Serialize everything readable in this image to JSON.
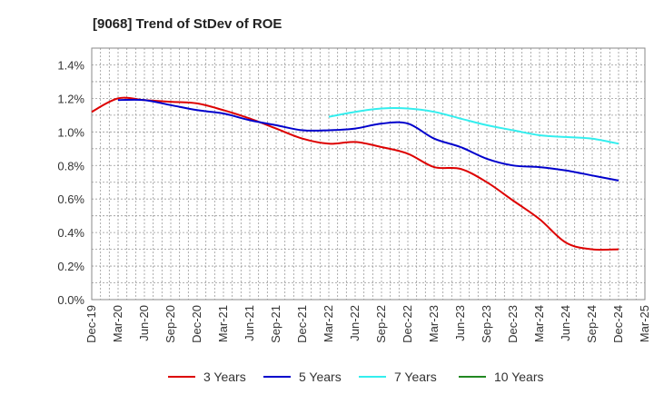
{
  "chart_data": {
    "type": "line",
    "title": "[9068]  Trend of StDev of ROE",
    "xlabel": "",
    "ylabel": "",
    "x_tick_labels": [
      "Dec-19",
      "Mar-20",
      "Jun-20",
      "Sep-20",
      "Dec-20",
      "Mar-21",
      "Jun-21",
      "Sep-21",
      "Dec-21",
      "Mar-22",
      "Jun-22",
      "Sep-22",
      "Dec-22",
      "Mar-23",
      "Jun-23",
      "Sep-23",
      "Dec-23",
      "Mar-24",
      "Jun-24",
      "Sep-24",
      "Dec-24",
      "Mar-25"
    ],
    "y_tick_labels": [
      "0.0%",
      "0.2%",
      "0.4%",
      "0.6%",
      "0.8%",
      "1.0%",
      "1.2%",
      "1.4%"
    ],
    "ylim": [
      0,
      1.5
    ],
    "y_unit": "%",
    "grid": true,
    "legend_position": "bottom",
    "series": [
      {
        "name": "3 Years",
        "color": "#dd0000",
        "values": [
          1.12,
          1.2,
          1.19,
          1.18,
          1.17,
          1.13,
          1.08,
          1.02,
          0.96,
          0.93,
          0.94,
          0.91,
          0.87,
          0.79,
          0.78,
          0.7,
          0.59,
          0.48,
          0.34,
          0.3,
          0.3,
          null
        ]
      },
      {
        "name": "5 Years",
        "color": "#0000cc",
        "values": [
          null,
          1.19,
          1.19,
          1.16,
          1.13,
          1.11,
          1.07,
          1.04,
          1.01,
          1.01,
          1.02,
          1.05,
          1.05,
          0.96,
          0.91,
          0.84,
          0.8,
          0.79,
          0.77,
          0.74,
          0.71,
          null
        ]
      },
      {
        "name": "7 Years",
        "color": "#33eeee",
        "values": [
          null,
          null,
          null,
          null,
          null,
          null,
          null,
          null,
          null,
          1.09,
          1.12,
          1.14,
          1.14,
          1.12,
          1.08,
          1.04,
          1.01,
          0.98,
          0.97,
          0.96,
          0.93,
          null
        ]
      },
      {
        "name": "10 Years",
        "color": "#228822",
        "values": [
          null,
          null,
          null,
          null,
          null,
          null,
          null,
          null,
          null,
          null,
          null,
          null,
          null,
          null,
          null,
          null,
          null,
          null,
          null,
          null,
          null,
          null
        ]
      }
    ]
  }
}
